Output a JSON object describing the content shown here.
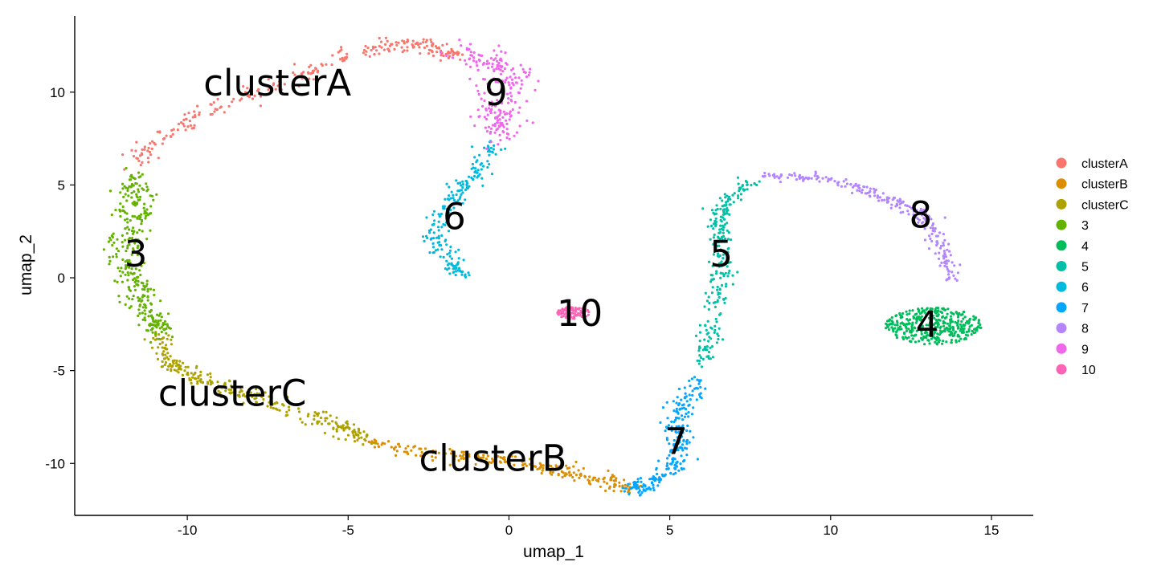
{
  "chart_data": {
    "type": "scatter",
    "title": "",
    "xlabel": "umap_1",
    "ylabel": "umap_2",
    "xlim": [
      -13.5,
      16.3
    ],
    "ylim": [
      -12.8,
      14.1
    ],
    "xticks": [
      -10,
      -5,
      0,
      5,
      10,
      15
    ],
    "xtick_labels": [
      "-10",
      "-5",
      "0",
      "5",
      "10",
      "15"
    ],
    "yticks": [
      -10,
      -5,
      0,
      5,
      10
    ],
    "ytick_labels": [
      "-10",
      "-5",
      "0",
      "5",
      "10"
    ],
    "grid": false,
    "legend_position": "right",
    "series": [
      {
        "name": "clusterA",
        "color": "#F8766D",
        "label_pos": [
          -7.2,
          10.5
        ],
        "path": [
          [
            -11.7,
            6.3
          ],
          [
            -11.0,
            7.3
          ],
          [
            -10.0,
            8.5
          ],
          [
            -8.5,
            9.6
          ],
          [
            -7.0,
            10.5
          ],
          [
            -5.5,
            11.5
          ],
          [
            -4.0,
            12.5
          ],
          [
            -3.0,
            12.6
          ],
          [
            -2.2,
            12.3
          ],
          [
            -1.5,
            11.9
          ]
        ],
        "spread": 0.22,
        "n": 260
      },
      {
        "name": "clusterB",
        "color": "#DB8E00",
        "label_pos": [
          -0.5,
          -9.7
        ],
        "path": [
          [
            -4.5,
            -8.8
          ],
          [
            -3.0,
            -9.3
          ],
          [
            -1.5,
            -9.6
          ],
          [
            0.0,
            -9.9
          ],
          [
            1.5,
            -10.3
          ],
          [
            2.5,
            -10.8
          ],
          [
            3.8,
            -11.3
          ]
        ],
        "spread": 0.2,
        "n": 230
      },
      {
        "name": "clusterC",
        "color": "#AEA200",
        "label_pos": [
          -8.6,
          -6.2
        ],
        "path": [
          [
            -10.9,
            -3.0
          ],
          [
            -10.7,
            -4.5
          ],
          [
            -9.8,
            -5.3
          ],
          [
            -8.5,
            -6.1
          ],
          [
            -7.0,
            -6.9
          ],
          [
            -5.5,
            -7.8
          ],
          [
            -4.5,
            -8.7
          ]
        ],
        "spread": 0.22,
        "n": 270
      },
      {
        "name": "3",
        "color": "#64B200",
        "label_pos": [
          -11.6,
          1.3
        ],
        "path": [
          [
            -11.6,
            5.5
          ],
          [
            -11.6,
            4.0
          ],
          [
            -11.8,
            2.5
          ],
          [
            -12.0,
            1.0
          ],
          [
            -11.6,
            -0.5
          ],
          [
            -11.2,
            -2.0
          ],
          [
            -10.8,
            -3.0
          ]
        ],
        "spread": 0.28,
        "n": 320
      },
      {
        "name": "4",
        "color": "#00BD5C",
        "label_pos": [
          13.0,
          -2.5
        ],
        "blob": {
          "cx": 13.2,
          "cy": -2.6,
          "rx": 1.5,
          "ry": 1.0
        },
        "n": 380
      },
      {
        "name": "5",
        "color": "#00C1A7",
        "label_pos": [
          6.6,
          1.3
        ],
        "path": [
          [
            7.6,
            5.2
          ],
          [
            6.8,
            4.2
          ],
          [
            6.5,
            3.0
          ],
          [
            6.7,
            1.5
          ],
          [
            6.6,
            0.0
          ],
          [
            6.4,
            -1.5
          ],
          [
            6.2,
            -3.5
          ],
          [
            6.0,
            -4.5
          ]
        ],
        "spread": 0.17,
        "n": 250
      },
      {
        "name": "6",
        "color": "#00BADE",
        "label_pos": [
          -1.7,
          3.3
        ],
        "path": [
          [
            -0.5,
            7.3
          ],
          [
            -1.0,
            5.7
          ],
          [
            -1.6,
            4.5
          ],
          [
            -2.2,
            3.3
          ],
          [
            -2.2,
            2.0
          ],
          [
            -1.8,
            0.8
          ],
          [
            -1.5,
            0.3
          ]
        ],
        "spread": 0.2,
        "n": 200
      },
      {
        "name": "7",
        "color": "#00A6FF",
        "label_pos": [
          5.2,
          -8.8
        ],
        "path": [
          [
            5.9,
            -5.7
          ],
          [
            5.5,
            -6.6
          ],
          [
            5.2,
            -7.6
          ],
          [
            5.3,
            -8.6
          ],
          [
            5.2,
            -9.7
          ],
          [
            4.9,
            -10.6
          ],
          [
            4.2,
            -11.2
          ],
          [
            3.7,
            -11.4
          ]
        ],
        "spread": 0.2,
        "n": 240
      },
      {
        "name": "8",
        "color": "#B385FF",
        "label_pos": [
          12.8,
          3.4
        ],
        "path": [
          [
            8.0,
            5.5
          ],
          [
            9.5,
            5.4
          ],
          [
            10.8,
            4.9
          ],
          [
            11.8,
            4.2
          ],
          [
            12.7,
            3.6
          ],
          [
            13.3,
            2.5
          ],
          [
            13.6,
            1.0
          ],
          [
            13.8,
            -0.2
          ]
        ],
        "spread": 0.15,
        "n": 230
      },
      {
        "name": "9",
        "color": "#EF67EB",
        "label_pos": [
          -0.4,
          10.0
        ],
        "path": [
          [
            -1.6,
            12.2
          ],
          [
            -0.6,
            11.7
          ],
          [
            0.2,
            11.2
          ],
          [
            -0.2,
            10.3
          ],
          [
            -0.4,
            9.3
          ],
          [
            -0.3,
            8.3
          ],
          [
            -0.5,
            7.5
          ]
        ],
        "spread": 0.38,
        "n": 220
      },
      {
        "name": "10",
        "color": "#FF63B6",
        "label_pos": [
          2.2,
          -1.9
        ],
        "blob": {
          "cx": 2.0,
          "cy": -1.9,
          "rx": 0.5,
          "ry": 0.35
        },
        "n": 90
      }
    ],
    "legend_entries": [
      "clusterA",
      "clusterB",
      "clusterC",
      "3",
      "4",
      "5",
      "6",
      "7",
      "8",
      "9",
      "10"
    ]
  }
}
